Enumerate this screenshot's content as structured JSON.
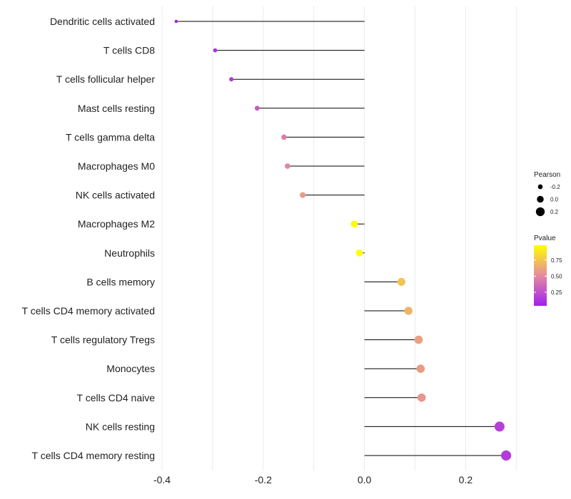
{
  "chart_data": {
    "type": "lollipop",
    "title": "",
    "xlabel": "",
    "ylabel": "",
    "xlim": [
      -0.4,
      0.3
    ],
    "x_ticks": [
      -0.4,
      -0.2,
      0.0,
      0.2
    ],
    "x_tick_labels": [
      "-0.4",
      "-0.2",
      "0.0",
      "0.2"
    ],
    "grid": true,
    "categories": [
      "Dendritic cells activated",
      "T cells CD8",
      "T cells follicular helper",
      "Mast cells resting",
      "T cells gamma delta",
      "Macrophages M0",
      "NK cells activated",
      "Macrophages M2",
      "Neutrophils",
      "B cells memory",
      "T cells CD4 memory activated",
      "T cells regulatory  Tregs ",
      "Monocytes",
      "T cells CD4 naive",
      "NK cells resting",
      "T cells CD4 memory resting"
    ],
    "pearson": [
      -0.372,
      -0.295,
      -0.263,
      -0.212,
      -0.159,
      -0.152,
      -0.122,
      -0.02,
      -0.01,
      0.073,
      0.087,
      0.107,
      0.111,
      0.113,
      0.267,
      0.28
    ],
    "pvalue": [
      0.04,
      0.1,
      0.15,
      0.3,
      0.45,
      0.5,
      0.58,
      0.97,
      0.98,
      0.74,
      0.68,
      0.6,
      0.58,
      0.56,
      0.18,
      0.16
    ],
    "legend": {
      "size_title": "Pearson",
      "size_levels": [
        -0.2,
        0.0,
        0.2
      ],
      "size_labels": [
        "-0.2",
        "0.0",
        "0.2"
      ],
      "color_title": "Pvalue",
      "color_levels": [
        0.25,
        0.5,
        0.75
      ],
      "color_labels": [
        "0.25",
        "0.50",
        "0.75"
      ],
      "color_range": [
        0.04,
        0.98
      ],
      "position": "right"
    },
    "colors": {
      "low": "#a020f0",
      "mid": "#e58aa0",
      "high": "#ffff00",
      "segment": "#000000",
      "grid": "#ebebeb"
    }
  }
}
